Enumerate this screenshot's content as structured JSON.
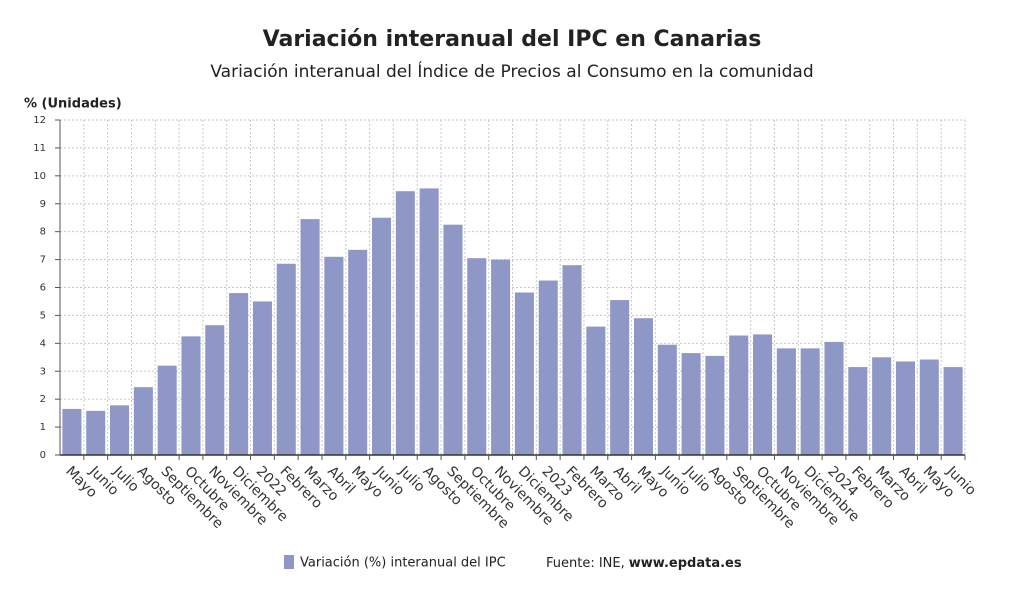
{
  "chart_data": {
    "type": "bar",
    "title": "Variación interanual del IPC en Canarias",
    "subtitle": "Variación interanual del Índice de Precios al Consumo en la comunidad",
    "y_axis_label": "% (Unidades)",
    "categories": [
      "Mayo",
      "Junio",
      "Julio",
      "Agosto",
      "Septiembre",
      "Octubre",
      "Noviembre",
      "Diciembre",
      "2022",
      "Febrero",
      "Marzo",
      "Abril",
      "Mayo",
      "Junio",
      "Julio",
      "Agosto",
      "Septiembre",
      "Octubre",
      "Noviembre",
      "Diciembre",
      "2023",
      "Febrero",
      "Marzo",
      "Abril",
      "Mayo",
      "Junio",
      "Julio",
      "Agosto",
      "Septiembre",
      "Octubre",
      "Noviembre",
      "Diciembre",
      "2024",
      "Febrero",
      "Marzo",
      "Abril",
      "Mayo",
      "Junio"
    ],
    "series": [
      {
        "name": "Variación (%) interanual del IPC",
        "color": "#8f97c6",
        "values": [
          1.65,
          1.58,
          1.78,
          2.43,
          3.2,
          4.25,
          4.65,
          5.8,
          5.5,
          6.85,
          8.45,
          7.1,
          7.35,
          8.5,
          9.45,
          9.55,
          8.25,
          7.05,
          7.0,
          5.82,
          6.25,
          6.8,
          4.6,
          5.55,
          4.9,
          3.95,
          3.65,
          3.55,
          4.28,
          4.32,
          3.82,
          3.82,
          4.05,
          3.15,
          3.5,
          3.35,
          3.42,
          3.15
        ]
      }
    ],
    "ylim": [
      0,
      12
    ],
    "yticks": [
      0,
      1,
      2,
      3,
      4,
      5,
      6,
      7,
      8,
      9,
      10,
      11,
      12
    ],
    "grid": true,
    "source_prefix": "Fuente: INE,",
    "source_site": "www.epdata.es"
  }
}
